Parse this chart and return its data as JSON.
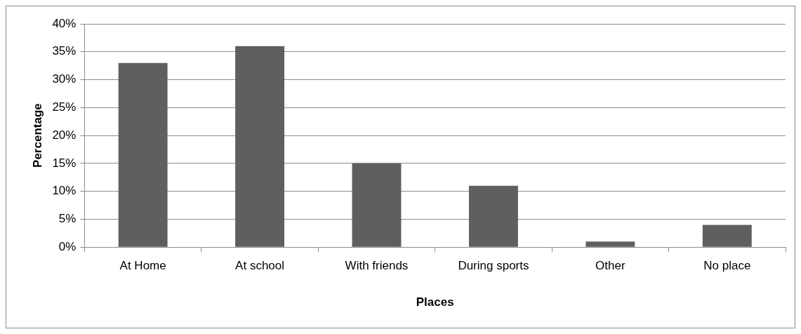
{
  "chart_data": {
    "type": "bar",
    "xlabel": "Places",
    "ylabel": "Percentage",
    "categories": [
      "At Home",
      "At school",
      "With friends",
      "During sports",
      "Other",
      "No place"
    ],
    "values": [
      33,
      36,
      15,
      11,
      1,
      4
    ],
    "color": "#5f5f5f",
    "ylim": [
      0,
      40
    ],
    "yticks": [
      {
        "value": 0,
        "label": "0%"
      },
      {
        "value": 5,
        "label": "5%"
      },
      {
        "value": 10,
        "label": "10%"
      },
      {
        "value": 15,
        "label": "15%"
      },
      {
        "value": 20,
        "label": "20%"
      },
      {
        "value": 25,
        "label": "25%"
      },
      {
        "value": 30,
        "label": "30%"
      },
      {
        "value": 35,
        "label": "35%"
      },
      {
        "value": 40,
        "label": "40%"
      }
    ],
    "grid": "y",
    "legend": false
  }
}
